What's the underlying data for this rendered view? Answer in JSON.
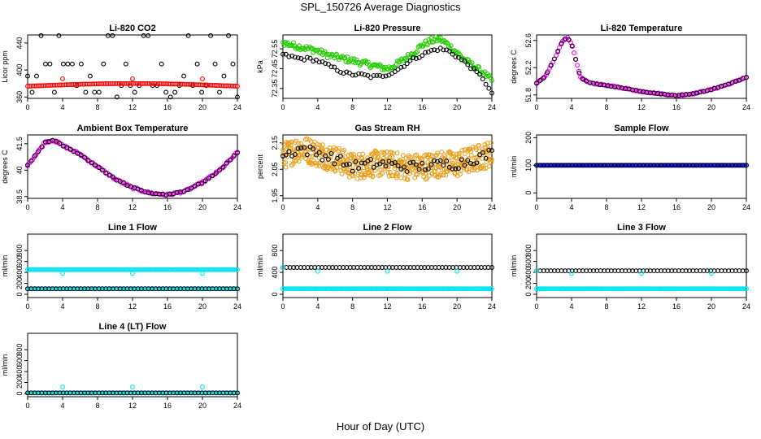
{
  "page": {
    "title": "SPL_150726  Average Diagnostics",
    "x_caption": "Hour of Day (UTC)"
  },
  "colors": {
    "black": "#000000",
    "red": "#ff0000",
    "green": "#22cc00",
    "magenta": "#ff00ff",
    "orange": "#e8a020",
    "blue": "#0000ff",
    "cyan": "#00e5ee"
  },
  "x_axis": {
    "range": [
      0,
      24
    ],
    "ticks": [
      0,
      4,
      8,
      12,
      16,
      20,
      24
    ]
  },
  "chart_data": [
    {
      "type": "scatter",
      "title": "Li-820 CO2",
      "ylabel": "Licor ppm",
      "ylim": [
        358,
        452
      ],
      "yticks": [
        360,
        400,
        440
      ],
      "series": [
        {
          "color": "#000000",
          "gen": "scatter_levels",
          "levels": [
            360,
            367,
            377,
            391,
            409,
            451
          ],
          "n": 48
        },
        {
          "color": "#ff0000",
          "gen": "dome",
          "base": 376,
          "amp": 4,
          "n": 120
        },
        {
          "color": "#ff0000",
          "gen": "points",
          "x": [
            4,
            12,
            20
          ],
          "y": [
            387,
            387,
            387
          ]
        }
      ]
    },
    {
      "type": "scatter",
      "title": "Li-820 Pressure",
      "ylabel": "kPa",
      "ylim": [
        72.3,
        72.62
      ],
      "yticks": [
        72.35,
        72.45,
        72.55
      ],
      "series": [
        {
          "color": "#22cc00",
          "gen": "knots",
          "dense": 180,
          "jitter": 0.015,
          "x": [
            0,
            1,
            2,
            3,
            4,
            5,
            6,
            7,
            8,
            9,
            10,
            11,
            12,
            13,
            14,
            15,
            16,
            17,
            18,
            19,
            20,
            21,
            22,
            23,
            24
          ],
          "y": [
            72.58,
            72.57,
            72.56,
            72.55,
            72.54,
            72.52,
            72.51,
            72.5,
            72.49,
            72.48,
            72.47,
            72.46,
            72.45,
            72.47,
            72.5,
            72.53,
            72.57,
            72.59,
            72.6,
            72.57,
            72.53,
            72.49,
            72.46,
            72.43,
            72.39
          ]
        },
        {
          "color": "#000000",
          "gen": "knots",
          "dense": 70,
          "jitter": 0.008,
          "x": [
            0,
            1,
            2,
            3,
            4,
            5,
            6,
            7,
            8,
            9,
            10,
            11,
            12,
            13,
            14,
            15,
            16,
            17,
            18,
            19,
            20,
            21,
            22,
            23,
            24
          ],
          "y": [
            72.52,
            72.51,
            72.5,
            72.5,
            72.49,
            72.47,
            72.45,
            72.43,
            72.42,
            72.42,
            72.41,
            72.41,
            72.42,
            72.44,
            72.47,
            72.5,
            72.52,
            72.54,
            72.55,
            72.54,
            72.51,
            72.48,
            72.44,
            72.4,
            72.32
          ]
        }
      ]
    },
    {
      "type": "scatter",
      "title": "Li-820 Temperature",
      "ylabel": "degrees C",
      "ylim": [
        51.75,
        52.68
      ],
      "yticks": [
        51.8,
        52.2,
        52.6
      ],
      "series": [
        {
          "color": "#ff00ff",
          "gen": "knots",
          "dense": 130,
          "jitter": 0.008,
          "x": [
            0,
            1,
            2,
            3,
            3.5,
            4,
            5,
            6,
            8,
            10,
            12,
            14,
            16,
            18,
            20,
            22,
            24
          ],
          "y": [
            51.97,
            52.07,
            52.32,
            52.6,
            52.64,
            52.55,
            52.06,
            51.98,
            51.94,
            51.9,
            51.85,
            51.82,
            51.79,
            51.82,
            51.88,
            51.96,
            52.06
          ]
        },
        {
          "color": "#000000",
          "gen": "knots",
          "dense": 60,
          "jitter": 0.004,
          "x": [
            0,
            1,
            2,
            3,
            3.5,
            4,
            5,
            6,
            8,
            10,
            12,
            14,
            16,
            18,
            20,
            22,
            24
          ],
          "y": [
            51.97,
            52.07,
            52.32,
            52.6,
            52.64,
            52.55,
            52.06,
            51.98,
            51.94,
            51.9,
            51.85,
            51.82,
            51.79,
            51.82,
            51.88,
            51.96,
            52.06
          ]
        }
      ]
    },
    {
      "type": "scatter",
      "title": "Ambient Box Temperature",
      "ylabel": "degrees C",
      "ylim": [
        38.4,
        42.0
      ],
      "yticks": [
        38.5,
        40.0,
        41.5
      ],
      "series": [
        {
          "color": "#ff00ff",
          "gen": "knots",
          "dense": 130,
          "jitter": 0.06,
          "x": [
            0,
            1,
            2,
            3,
            4,
            6,
            8,
            10,
            12,
            14,
            16,
            18,
            20,
            22,
            24
          ],
          "y": [
            40.3,
            40.9,
            41.6,
            41.7,
            41.4,
            40.9,
            40.2,
            39.5,
            39.0,
            38.7,
            38.6,
            38.8,
            39.3,
            40.0,
            41.0
          ]
        },
        {
          "color": "#000000",
          "gen": "knots",
          "dense": 60,
          "jitter": 0.03,
          "x": [
            0,
            1,
            2,
            3,
            4,
            6,
            8,
            10,
            12,
            14,
            16,
            18,
            20,
            22,
            24
          ],
          "y": [
            40.3,
            40.9,
            41.6,
            41.7,
            41.4,
            40.9,
            40.2,
            39.5,
            39.0,
            38.7,
            38.6,
            38.8,
            39.3,
            40.0,
            41.0
          ]
        }
      ]
    },
    {
      "type": "scatter",
      "title": "Gas Stream RH",
      "ylabel": "percent",
      "ylim": [
        1.94,
        2.18
      ],
      "yticks": [
        1.95,
        2.05,
        2.15
      ],
      "series": [
        {
          "color": "#e8a020",
          "gen": "knots",
          "dense": 500,
          "jitter": 0.05,
          "x": [
            0,
            2,
            4,
            6,
            8,
            10,
            12,
            14,
            16,
            18,
            20,
            22,
            24
          ],
          "y": [
            2.1,
            2.13,
            2.11,
            2.09,
            2.06,
            2.07,
            2.07,
            2.06,
            2.06,
            2.07,
            2.07,
            2.09,
            2.11
          ]
        },
        {
          "color": "#000000",
          "gen": "knots",
          "dense": 70,
          "jitter": 0.02,
          "x": [
            0,
            2,
            4,
            6,
            8,
            10,
            12,
            14,
            16,
            18,
            20,
            22,
            24
          ],
          "y": [
            2.1,
            2.13,
            2.11,
            2.09,
            2.06,
            2.07,
            2.07,
            2.06,
            2.06,
            2.07,
            2.07,
            2.09,
            2.11
          ]
        }
      ]
    },
    {
      "type": "scatter",
      "title": "Sample Flow",
      "ylabel": "ml/min",
      "ylim": [
        -20,
        210
      ],
      "yticks": [
        0,
        100,
        200
      ],
      "series": [
        {
          "color": "#0000ff",
          "gen": "flat",
          "y": 100,
          "n": 150
        },
        {
          "color": "#000000",
          "gen": "flat",
          "y": 100,
          "n": 60
        }
      ]
    },
    {
      "type": "scatter",
      "title": "Line 1 Flow",
      "ylabel": "ml/min",
      "ylim": [
        -60,
        1100
      ],
      "yticks": [
        0,
        200,
        400,
        600,
        800
      ],
      "series": [
        {
          "color": "#00e5ee",
          "gen": "flat",
          "y": 450,
          "n": 150
        },
        {
          "color": "#00e5ee",
          "gen": "flat",
          "y": 100,
          "n": 150
        },
        {
          "color": "#000000",
          "gen": "flat",
          "y": 100,
          "n": 60
        },
        {
          "color": "#00e5ee",
          "gen": "points",
          "x": [
            4,
            12,
            20
          ],
          "y": [
            380,
            380,
            380
          ]
        }
      ]
    },
    {
      "type": "scatter",
      "title": "Line 2 Flow",
      "ylabel": "ml/min",
      "ylim": [
        -60,
        1100
      ],
      "yticks": [
        0,
        400,
        800
      ],
      "series": [
        {
          "color": "#00e5ee",
          "gen": "flat",
          "y": 100,
          "n": 150
        },
        {
          "color": "#000000",
          "gen": "flat",
          "y": 490,
          "n": 60
        },
        {
          "color": "#00e5ee",
          "gen": "points",
          "x": [
            0,
            4,
            12,
            20
          ],
          "y": [
            490,
            420,
            420,
            420
          ]
        }
      ]
    },
    {
      "type": "scatter",
      "title": "Line 3 Flow",
      "ylabel": "ml/min",
      "ylim": [
        -60,
        1100
      ],
      "yticks": [
        0,
        200,
        400,
        600,
        800
      ],
      "series": [
        {
          "color": "#00e5ee",
          "gen": "flat",
          "y": 100,
          "n": 150
        },
        {
          "color": "#000000",
          "gen": "flat",
          "y": 430,
          "n": 60
        },
        {
          "color": "#00e5ee",
          "gen": "points",
          "x": [
            0,
            4,
            12,
            20
          ],
          "y": [
            430,
            380,
            380,
            380
          ]
        }
      ]
    },
    {
      "type": "scatter",
      "title": "Line 4 (LT) Flow",
      "ylabel": "ml/min",
      "ylim": [
        -60,
        1100
      ],
      "yticks": [
        0,
        200,
        400,
        600,
        800
      ],
      "series": [
        {
          "color": "#00e5ee",
          "gen": "flat",
          "y": 10,
          "n": 150
        },
        {
          "color": "#000000",
          "gen": "flat",
          "y": 10,
          "n": 60
        },
        {
          "color": "#00e5ee",
          "gen": "points",
          "x": [
            4,
            12,
            20
          ],
          "y": [
            120,
            120,
            120
          ]
        }
      ]
    }
  ]
}
